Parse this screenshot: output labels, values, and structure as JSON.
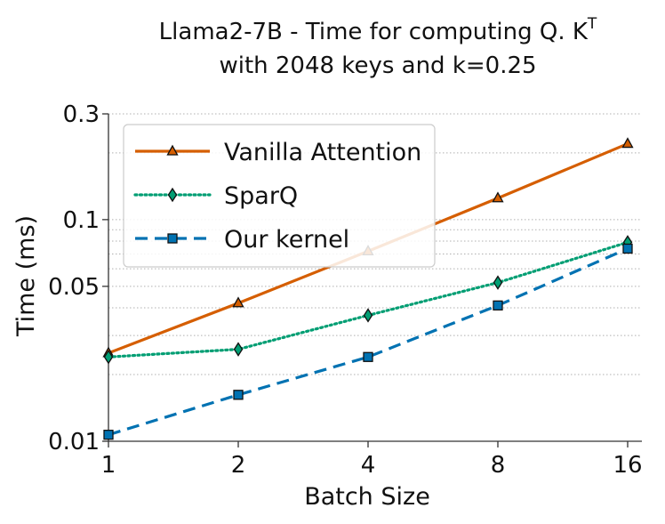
{
  "chart_data": {
    "type": "line",
    "title_line1": "Llama2-7B - Time for computing Q. K",
    "title_sup": "T",
    "title_line2": "with 2048 keys and k=0.25",
    "xlabel": "Batch Size",
    "ylabel": "Time (ms)",
    "x_scale": "log2",
    "y_scale": "log",
    "x": [
      1,
      2,
      4,
      8,
      16
    ],
    "x_tick_labels": [
      "1",
      "2",
      "4",
      "8",
      "16"
    ],
    "ylim": [
      0.01,
      0.3
    ],
    "y_tick_values": [
      0.01,
      0.05,
      0.1,
      0.3
    ],
    "y_tick_labels": [
      "0.01",
      "0.05",
      "0.1",
      "0.3"
    ],
    "minor_gridlines": [
      0.02,
      0.03,
      0.04,
      0.06,
      0.07,
      0.08,
      0.09,
      0.2
    ],
    "grid": "horizontal dotted",
    "legend_position": "top-left",
    "series": [
      {
        "name": "Vanilla Attention",
        "values": [
          0.025,
          0.042,
          0.072,
          0.125,
          0.22
        ],
        "color": "#d55e00",
        "dash": "solid",
        "marker": "triangle"
      },
      {
        "name": "SparQ",
        "values": [
          0.024,
          0.026,
          0.037,
          0.052,
          0.079
        ],
        "color": "#009e73",
        "dash": "dotted",
        "marker": "diamond"
      },
      {
        "name": "Our kernel",
        "values": [
          0.0107,
          0.0162,
          0.024,
          0.041,
          0.074
        ],
        "color": "#0072b2",
        "dash": "dashed",
        "marker": "square"
      }
    ]
  }
}
